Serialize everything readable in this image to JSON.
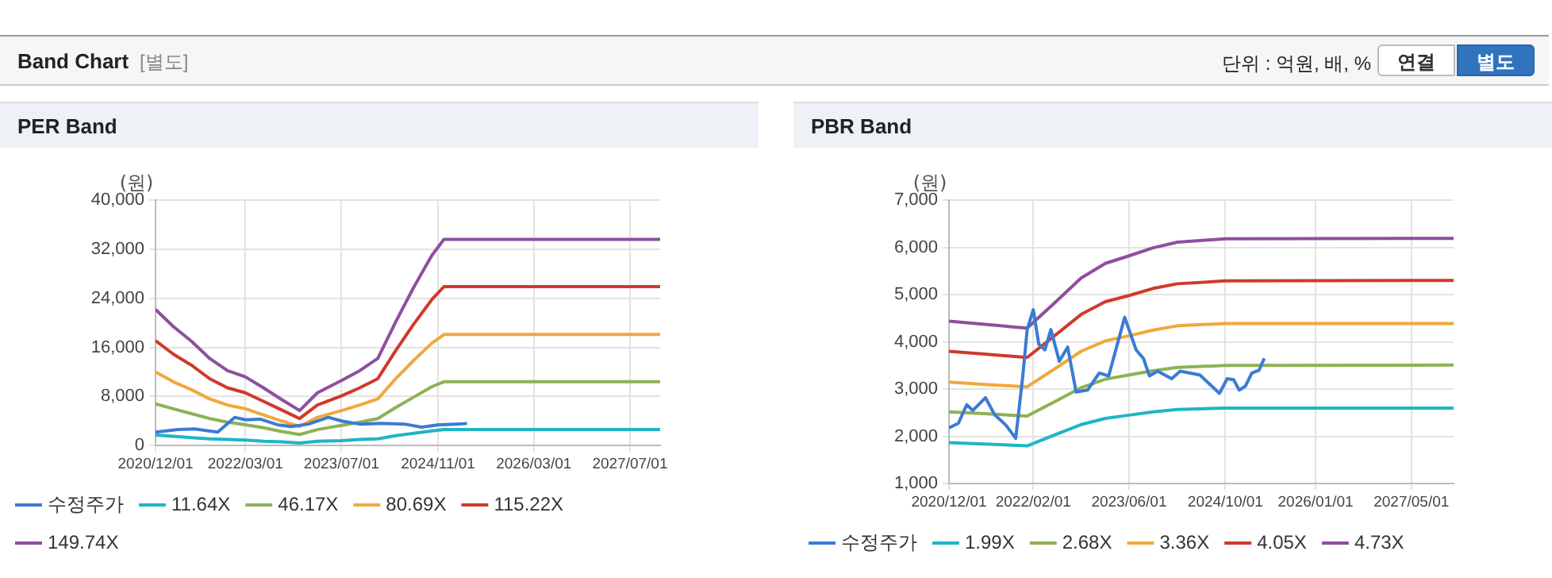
{
  "chart_data": [
    {
      "type": "other",
      "title": "Band Chart",
      "annotations": [
        "[별도]",
        "단위 : 억원, 배, %",
        "연결",
        "별도"
      ]
    },
    {
      "type": "line",
      "title": "PER Band",
      "ylabel": "(원)",
      "legend": "bottom",
      "grid": true,
      "xlim": [
        "2020-12-01",
        "2027-12-01"
      ],
      "xticks": [
        {
          "value": "2020-12-01",
          "label": "2020/12/01"
        },
        {
          "value": "2022-03-01",
          "label": "2022/03/01"
        },
        {
          "value": "2023-07-01",
          "label": "2023/07/01"
        },
        {
          "value": "2024-11-01",
          "label": "2024/11/01"
        },
        {
          "value": "2026-03-01",
          "label": "2026/03/01"
        },
        {
          "value": "2027-07-01",
          "label": "2027/07/01"
        }
      ],
      "ylim": [
        0,
        40000
      ],
      "yticks": [
        {
          "value": 0,
          "label": "0"
        },
        {
          "value": 8000,
          "label": "8,000"
        },
        {
          "value": 16000,
          "label": "16,000"
        },
        {
          "value": 24000,
          "label": "24,000"
        },
        {
          "value": 32000,
          "label": "32,000"
        },
        {
          "value": 40000,
          "label": "40,000"
        }
      ],
      "series": [
        {
          "name": "수정주가",
          "color": "#3a7bd5",
          "x": [
            "2020-12-01",
            "2021-03-25",
            "2021-06-18",
            "2021-10-12",
            "2022-01-06",
            "2022-03-01",
            "2022-05-15",
            "2022-08-10",
            "2022-10-20",
            "2023-01-15",
            "2023-04-25",
            "2023-07-01",
            "2023-10-01",
            "2024-01-20",
            "2024-05-15",
            "2024-08-10",
            "2024-11-05",
            "2025-02-01",
            "2025-03-28"
          ],
          "values": [
            2200,
            2600,
            2700,
            2200,
            4600,
            4200,
            4300,
            3400,
            3100,
            3500,
            4600,
            4000,
            3500,
            3600,
            3500,
            3000,
            3400,
            3500,
            3600
          ]
        },
        {
          "name": "11.64X",
          "color": "#1fb5c4",
          "x": [
            "2020-12-01",
            "2021-03-01",
            "2021-06-01",
            "2021-09-01",
            "2021-12-01",
            "2022-03-01",
            "2022-06-01",
            "2022-09-01",
            "2022-12-01",
            "2023-03-01",
            "2023-07-01",
            "2023-10-01",
            "2024-01-01",
            "2024-04-01",
            "2024-07-01",
            "2024-10-01",
            "2024-12-01",
            "2027-12-01"
          ],
          "values": [
            1700,
            1500,
            1300,
            1100,
            1000,
            900,
            700,
            600,
            400,
            700,
            800,
            1000,
            1100,
            1600,
            2000,
            2400,
            2600,
            2600
          ]
        },
        {
          "name": "46.17X",
          "color": "#8db255",
          "x": [
            "2020-12-01",
            "2021-03-01",
            "2021-06-01",
            "2021-09-01",
            "2021-12-01",
            "2022-03-01",
            "2022-06-01",
            "2022-09-01",
            "2022-12-01",
            "2023-03-01",
            "2023-07-01",
            "2023-10-01",
            "2024-01-01",
            "2024-04-01",
            "2024-07-01",
            "2024-10-01",
            "2024-12-01",
            "2027-12-01"
          ],
          "values": [
            6800,
            6000,
            5200,
            4400,
            3800,
            3400,
            2900,
            2300,
            1800,
            2600,
            3300,
            3800,
            4400,
            6200,
            7900,
            9600,
            10400,
            10400
          ]
        },
        {
          "name": "80.69X",
          "color": "#f0a83c",
          "x": [
            "2020-12-01",
            "2021-03-01",
            "2021-06-01",
            "2021-09-01",
            "2021-12-01",
            "2022-03-01",
            "2022-06-01",
            "2022-09-01",
            "2022-12-01",
            "2023-03-01",
            "2023-07-01",
            "2023-10-01",
            "2024-01-01",
            "2024-04-01",
            "2024-07-01",
            "2024-10-01",
            "2024-12-01",
            "2027-12-01"
          ],
          "values": [
            12000,
            10400,
            9100,
            7600,
            6600,
            6000,
            5000,
            4000,
            3100,
            4600,
            5700,
            6600,
            7600,
            10900,
            13900,
            16700,
            18100,
            18100
          ]
        },
        {
          "name": "115.22X",
          "color": "#d0392b",
          "x": [
            "2020-12-01",
            "2021-03-01",
            "2021-06-01",
            "2021-09-01",
            "2021-12-01",
            "2022-03-01",
            "2022-06-01",
            "2022-09-01",
            "2022-12-01",
            "2023-03-01",
            "2023-07-01",
            "2023-10-01",
            "2024-01-01",
            "2024-04-01",
            "2024-07-01",
            "2024-10-01",
            "2024-12-01",
            "2027-12-01"
          ],
          "values": [
            17100,
            14900,
            13100,
            10900,
            9400,
            8600,
            7200,
            5800,
            4400,
            6600,
            8100,
            9400,
            10900,
            15500,
            19800,
            23800,
            25900,
            25900
          ]
        },
        {
          "name": "149.74X",
          "color": "#8e4f9e",
          "x": [
            "2020-12-01",
            "2021-03-01",
            "2021-06-01",
            "2021-09-01",
            "2021-12-01",
            "2022-03-01",
            "2022-06-01",
            "2022-09-01",
            "2022-12-01",
            "2023-03-01",
            "2023-07-01",
            "2023-10-01",
            "2024-01-01",
            "2024-04-01",
            "2024-07-01",
            "2024-10-01",
            "2024-12-01",
            "2027-12-01"
          ],
          "values": [
            22200,
            19400,
            17000,
            14200,
            12200,
            11200,
            9400,
            7500,
            5700,
            8600,
            10600,
            12200,
            14200,
            20200,
            25800,
            31000,
            33600,
            33600
          ]
        }
      ]
    },
    {
      "type": "line",
      "title": "PBR Band",
      "ylabel": "(원)",
      "legend": "bottom",
      "grid": true,
      "xlim": [
        "2020-12-01",
        "2027-12-01"
      ],
      "xticks": [
        {
          "value": "2020-12-01",
          "label": "2020/12/01"
        },
        {
          "value": "2022-02-01",
          "label": "2022/02/01"
        },
        {
          "value": "2023-06-01",
          "label": "2023/06/01"
        },
        {
          "value": "2024-10-01",
          "label": "2024/10/01"
        },
        {
          "value": "2026-01-01",
          "label": "2026/01/01"
        },
        {
          "value": "2027-05-01",
          "label": "2027/05/01"
        }
      ],
      "ylim": [
        1000,
        7000
      ],
      "yticks": [
        {
          "value": 1000,
          "label": "1,000"
        },
        {
          "value": 2000,
          "label": "2,000"
        },
        {
          "value": 3000,
          "label": "3,000"
        },
        {
          "value": 4000,
          "label": "4,000"
        },
        {
          "value": 5000,
          "label": "5,000"
        },
        {
          "value": 6000,
          "label": "6,000"
        },
        {
          "value": 7000,
          "label": "7,000"
        }
      ],
      "series": [
        {
          "name": "수정주가",
          "color": "#3a7bd5",
          "x": [
            "2020-12-01",
            "2021-01-18",
            "2021-03-01",
            "2021-04-01",
            "2021-06-04",
            "2021-07-20",
            "2021-09-15",
            "2021-11-04",
            "2021-12-10",
            "2022-01-01",
            "2022-02-01",
            "2022-03-01",
            "2022-04-01",
            "2022-05-01",
            "2022-06-13",
            "2022-07-25",
            "2022-09-06",
            "2022-11-03",
            "2023-01-01",
            "2023-02-18",
            "2023-05-10",
            "2023-07-07",
            "2023-08-13",
            "2023-09-12",
            "2023-10-24",
            "2024-01-03",
            "2024-02-15",
            "2024-05-25",
            "2024-09-01",
            "2024-10-10",
            "2024-11-12",
            "2024-12-10",
            "2025-01-10",
            "2025-02-12",
            "2025-03-20",
            "2025-04-16"
          ],
          "values": [
            2180,
            2280,
            2670,
            2550,
            2820,
            2460,
            2240,
            1960,
            3280,
            4260,
            4680,
            3950,
            3830,
            4260,
            3590,
            3890,
            2940,
            2980,
            3340,
            3280,
            4520,
            3830,
            3650,
            3280,
            3380,
            3220,
            3380,
            3300,
            2910,
            3220,
            3200,
            2980,
            3060,
            3340,
            3400,
            3650
          ]
        },
        {
          "name": "1.99X",
          "color": "#1fb5c4",
          "x": [
            "2020-12-01",
            "2021-06-01",
            "2022-01-01",
            "2022-06-01",
            "2022-10-01",
            "2023-02-01",
            "2023-06-01",
            "2023-10-01",
            "2024-02-01",
            "2024-10-01",
            "2027-12-01"
          ],
          "values": [
            1870,
            1840,
            1800,
            2050,
            2250,
            2380,
            2450,
            2520,
            2570,
            2600,
            2600
          ]
        },
        {
          "name": "2.68X",
          "color": "#8db255",
          "x": [
            "2020-12-01",
            "2021-06-01",
            "2022-01-01",
            "2022-06-01",
            "2022-10-01",
            "2023-02-01",
            "2023-06-01",
            "2023-10-01",
            "2024-02-01",
            "2024-10-01",
            "2027-12-01"
          ],
          "values": [
            2520,
            2480,
            2430,
            2760,
            3030,
            3210,
            3300,
            3390,
            3460,
            3500,
            3510
          ]
        },
        {
          "name": "3.36X",
          "color": "#f0a83c",
          "x": [
            "2020-12-01",
            "2021-06-01",
            "2022-01-01",
            "2022-06-01",
            "2022-10-01",
            "2023-02-01",
            "2023-06-01",
            "2023-10-01",
            "2024-02-01",
            "2024-10-01",
            "2027-12-01"
          ],
          "values": [
            3150,
            3100,
            3050,
            3460,
            3800,
            4020,
            4130,
            4250,
            4340,
            4390,
            4390
          ]
        },
        {
          "name": "4.05X",
          "color": "#d0392b",
          "x": [
            "2020-12-01",
            "2021-06-01",
            "2022-01-01",
            "2022-06-01",
            "2022-10-01",
            "2023-02-01",
            "2023-06-01",
            "2023-10-01",
            "2024-02-01",
            "2024-10-01",
            "2027-12-01"
          ],
          "values": [
            3800,
            3740,
            3670,
            4170,
            4580,
            4850,
            4980,
            5130,
            5230,
            5290,
            5300
          ]
        },
        {
          "name": "4.73X",
          "color": "#8e4f9e",
          "x": [
            "2020-12-01",
            "2021-06-01",
            "2022-01-01",
            "2022-06-01",
            "2022-10-01",
            "2023-02-01",
            "2023-06-01",
            "2023-10-01",
            "2024-02-01",
            "2024-10-01",
            "2027-12-01"
          ],
          "values": [
            4440,
            4370,
            4290,
            4870,
            5350,
            5660,
            5820,
            5990,
            6110,
            6180,
            6190
          ]
        }
      ]
    }
  ]
}
